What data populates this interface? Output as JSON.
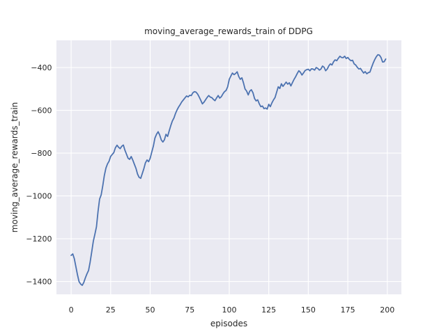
{
  "chart_data": {
    "type": "line",
    "title": "moving_average_rewards_train of DDPG",
    "xlabel": "episodes",
    "ylabel": "moving_average_rewards_train",
    "x_ticks": [
      0,
      25,
      50,
      75,
      100,
      125,
      150,
      175,
      200
    ],
    "y_ticks": [
      -400,
      -600,
      -800,
      -1000,
      -1200,
      -1400
    ],
    "xlim": [
      -9.3,
      208.9
    ],
    "ylim": [
      -1460,
      -273
    ],
    "grid": true,
    "legend": false,
    "style": {
      "figure_background": "#ffffff",
      "axes_background": "#eaeaf2",
      "grid_color": "#ffffff",
      "line_color": "#4c72b0",
      "text_color": "#262626"
    },
    "series": [
      {
        "name": "moving_average_rewards_train",
        "x_start": 0,
        "x_step": 1,
        "values": [
          -1278,
          -1271,
          -1293,
          -1331,
          -1369,
          -1400,
          -1412,
          -1418,
          -1405,
          -1383,
          -1364,
          -1348,
          -1310,
          -1262,
          -1212,
          -1180,
          -1145,
          -1072,
          -1015,
          -995,
          -952,
          -905,
          -870,
          -850,
          -838,
          -815,
          -806,
          -798,
          -775,
          -763,
          -773,
          -779,
          -768,
          -762,
          -786,
          -805,
          -824,
          -829,
          -816,
          -833,
          -852,
          -871,
          -898,
          -913,
          -918,
          -895,
          -872,
          -845,
          -832,
          -840,
          -824,
          -795,
          -767,
          -730,
          -712,
          -700,
          -715,
          -738,
          -748,
          -738,
          -712,
          -722,
          -697,
          -672,
          -650,
          -636,
          -615,
          -598,
          -584,
          -573,
          -560,
          -551,
          -542,
          -533,
          -537,
          -530,
          -531,
          -518,
          -513,
          -515,
          -524,
          -538,
          -553,
          -570,
          -562,
          -551,
          -540,
          -531,
          -538,
          -541,
          -549,
          -555,
          -542,
          -531,
          -543,
          -536,
          -523,
          -513,
          -507,
          -490,
          -455,
          -440,
          -426,
          -433,
          -428,
          -420,
          -442,
          -455,
          -448,
          -472,
          -500,
          -510,
          -528,
          -510,
          -504,
          -518,
          -545,
          -556,
          -551,
          -570,
          -583,
          -580,
          -592,
          -589,
          -594,
          -572,
          -583,
          -565,
          -551,
          -540,
          -515,
          -490,
          -498,
          -476,
          -488,
          -478,
          -468,
          -478,
          -471,
          -486,
          -470,
          -455,
          -443,
          -428,
          -415,
          -422,
          -435,
          -425,
          -414,
          -410,
          -408,
          -415,
          -406,
          -407,
          -412,
          -400,
          -404,
          -412,
          -407,
          -393,
          -399,
          -415,
          -407,
          -392,
          -383,
          -388,
          -373,
          -364,
          -368,
          -357,
          -347,
          -353,
          -354,
          -347,
          -358,
          -353,
          -362,
          -368,
          -366,
          -383,
          -388,
          -399,
          -407,
          -404,
          -415,
          -426,
          -419,
          -429,
          -424,
          -421,
          -400,
          -380,
          -363,
          -350,
          -340,
          -342,
          -353,
          -374,
          -373,
          -360
        ]
      }
    ]
  }
}
